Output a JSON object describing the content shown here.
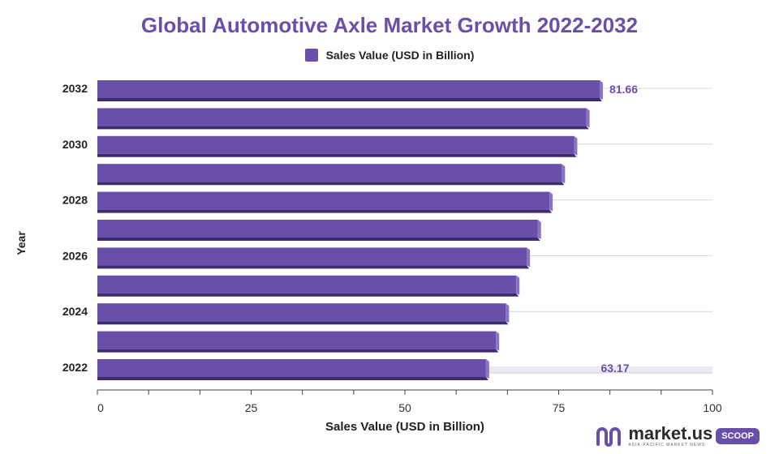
{
  "chart_data": {
    "type": "bar",
    "orientation": "horizontal",
    "title": "Global Automotive Axle Market Growth 2022-2032",
    "legend": "Sales Value (USD in Billion)",
    "xlabel": "Sales Value (USD in Billion)",
    "ylabel": "Year",
    "xlim": [
      0,
      100
    ],
    "x_ticks": [
      0,
      25,
      50,
      75,
      100
    ],
    "categories": [
      "2032",
      "2031",
      "2030",
      "2029",
      "2028",
      "2027",
      "2026",
      "2025",
      "2024",
      "2023",
      "2022"
    ],
    "category_labels": [
      "2032",
      "",
      "2030",
      "",
      "2028",
      "",
      "2026",
      "",
      "2024",
      "",
      "2022"
    ],
    "values": [
      81.66,
      79.5,
      77.5,
      75.5,
      73.5,
      71.6,
      69.8,
      68.1,
      66.4,
      64.8,
      63.17
    ],
    "data_labels": {
      "2032": "81.66",
      "2022": "63.17"
    },
    "bar_color": "#6a4faa",
    "bar_dark": "#3f2c6e"
  },
  "brand": {
    "name": "market.us",
    "tagline": "ASIA-PACIFIC MARKET NEWS",
    "badge": "SCOOP"
  }
}
